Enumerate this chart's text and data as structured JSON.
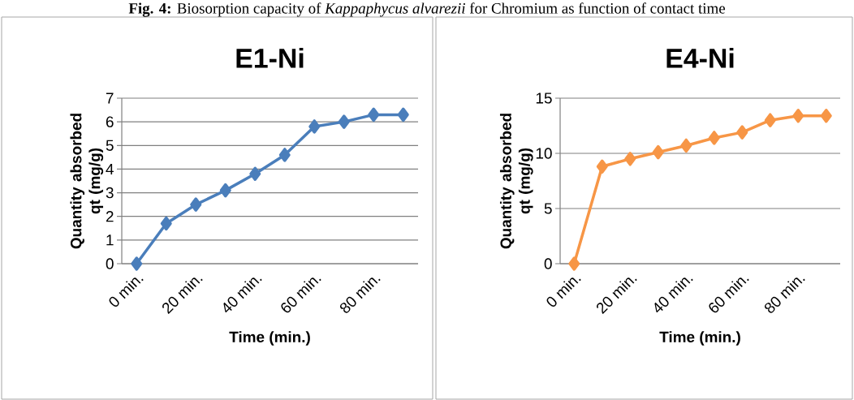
{
  "chart_data": [
    {
      "type": "line",
      "title": "E1-Ni",
      "xlabel": "Time (min.)",
      "ylabel": "Quantity absorbed qt (mg/g)",
      "annotations": [
        "**Fig. 4:** Biosorption capacity of *Kappaphycus alvarezii* for Chromium as function of contact time"
      ],
      "categories": [
        "0 min.",
        null,
        "20 min.",
        null,
        "40 min.",
        null,
        "60 min.",
        null,
        "80 min.",
        null
      ],
      "values": [
        0,
        1.7,
        2.5,
        3.1,
        3.8,
        4.6,
        5.8,
        6.0,
        6.3,
        6.3
      ],
      "color": "#4a7ebb",
      "ylim": [
        0,
        7
      ],
      "yticks": [
        0,
        1,
        2,
        3,
        4,
        5,
        6,
        7
      ],
      "grid": "y",
      "marker": "diamond"
    },
    {
      "type": "line",
      "title": "E4-Ni",
      "xlabel": "Time (min.)",
      "ylabel": "Quantity absorbed qt (mg/g)",
      "categories": [
        "0 min.",
        null,
        "20 min.",
        null,
        "40 min.",
        null,
        "60 min.",
        null,
        "80 min.",
        null
      ],
      "values": [
        0,
        8.8,
        9.5,
        10.1,
        10.7,
        11.4,
        11.9,
        13.0,
        13.4,
        13.4
      ],
      "color": "#f79646",
      "ylim": [
        0,
        15
      ],
      "yticks": [
        0,
        5,
        10,
        15
      ],
      "grid": "y",
      "marker": "diamond"
    }
  ]
}
